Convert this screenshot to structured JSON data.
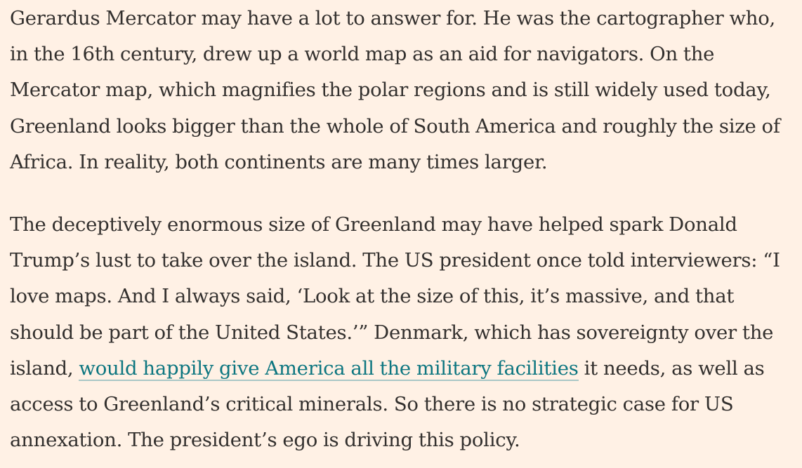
{
  "article": {
    "paragraph1": "Gerardus Mercator may have a lot to answer for. He was the cartographer who, in the 16th century, drew up a world map as an aid for navigators. On the Mercator map, which magnifies the polar regions and is still widely used today, Greenland looks bigger than the whole of South America and roughly the size of Africa. In reality, both continents are many times larger.",
    "paragraph2": {
      "before_link": "The deceptively enormous size of Greenland may have helped spark Donald Trump’s lust to take over the island. The US president once told interviewers: “I love maps. And I always said, ‘Look at the size of this, it’s massive, and that should be part of the United States.’” Denmark, which has sovereignty over the island, ",
      "link_text": "would happily give America all the military facilities",
      "after_link": " it needs, as well as access to Greenland’s critical minerals. So there is no strategic case for US annexation. The president’s ego is driving this policy."
    }
  },
  "colors": {
    "background": "#fff1e5",
    "text": "#33302e",
    "link": "#0d7680"
  }
}
